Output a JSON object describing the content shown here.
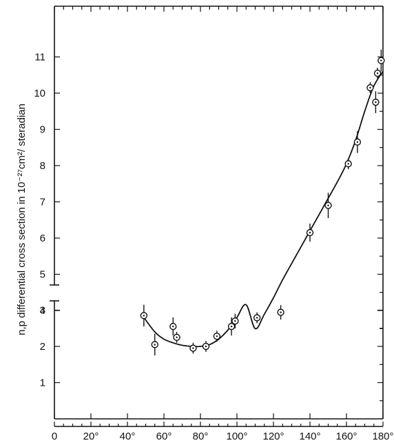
{
  "chart_data": {
    "type": "scatter",
    "title": "",
    "ylabel": "n,p differential cross section in 10⁻²⁷cm²/ steradian",
    "xlabel": "",
    "xlim": [
      0,
      180
    ],
    "ylim": [
      0,
      11
    ],
    "x_ticks": [
      0,
      20,
      40,
      60,
      80,
      100,
      120,
      140,
      160,
      180
    ],
    "x_tick_labels": [
      "0",
      "20°",
      "40°",
      "60°",
      "80°",
      "100°",
      "120°",
      "140°",
      "160°",
      "180°"
    ],
    "y_ticks": [
      1,
      2,
      3,
      4,
      5,
      6,
      7,
      8,
      9,
      10,
      11
    ],
    "y_tick_labels": [
      "1",
      "2",
      "3",
      "4",
      "5",
      "6",
      "7",
      "8",
      "9",
      "10",
      "11"
    ],
    "axis_break_between": [
      3.2,
      3.5
    ],
    "grid": false,
    "series": [
      {
        "points": [
          {
            "x": 49,
            "y": 2.85,
            "err": 0.3
          },
          {
            "x": 55,
            "y": 2.05,
            "err": 0.3
          },
          {
            "x": 65,
            "y": 2.55,
            "err": 0.25
          },
          {
            "x": 67,
            "y": 2.25,
            "err": 0.15
          },
          {
            "x": 76,
            "y": 1.95,
            "err": 0.15
          },
          {
            "x": 83,
            "y": 2.0,
            "err": 0.15
          },
          {
            "x": 89,
            "y": 2.28,
            "err": 0.15
          },
          {
            "x": 97,
            "y": 2.55,
            "err": 0.25
          },
          {
            "x": 99,
            "y": 2.7,
            "err": 0.2
          },
          {
            "x": 111,
            "y": 3.8,
            "err": 0.15
          },
          {
            "x": 124,
            "y": 3.95,
            "err": 0.2
          },
          {
            "x": 140,
            "y": 6.15,
            "err": 0.25
          },
          {
            "x": 150,
            "y": 6.9,
            "err": 0.35
          },
          {
            "x": 161,
            "y": 8.05,
            "err": 0.15
          },
          {
            "x": 166,
            "y": 8.65,
            "err": 0.3
          },
          {
            "x": 173,
            "y": 10.15,
            "err": 0.15
          },
          {
            "x": 176,
            "y": 9.75,
            "err": 0.3
          },
          {
            "x": 177,
            "y": 10.55,
            "err": 0.15
          },
          {
            "x": 179,
            "y": 10.9,
            "err": 0.3
          }
        ]
      }
    ],
    "fit_curve": [
      [
        49,
        2.8
      ],
      [
        55,
        2.4
      ],
      [
        60,
        2.2
      ],
      [
        65,
        2.1
      ],
      [
        70,
        2.03
      ],
      [
        75,
        2.0
      ],
      [
        80,
        2.0
      ],
      [
        85,
        2.05
      ],
      [
        90,
        2.2
      ],
      [
        95,
        2.45
      ],
      [
        100,
        2.8
      ],
      [
        105,
        3.15
      ],
      [
        110,
        3.5
      ],
      [
        115,
        3.9
      ],
      [
        120,
        4.35
      ],
      [
        125,
        4.85
      ],
      [
        130,
        5.3
      ],
      [
        135,
        5.75
      ],
      [
        140,
        6.2
      ],
      [
        145,
        6.65
      ],
      [
        150,
        7.1
      ],
      [
        155,
        7.55
      ],
      [
        160,
        8.05
      ],
      [
        165,
        8.7
      ],
      [
        170,
        9.5
      ],
      [
        175,
        10.2
      ],
      [
        180,
        10.6
      ]
    ]
  }
}
